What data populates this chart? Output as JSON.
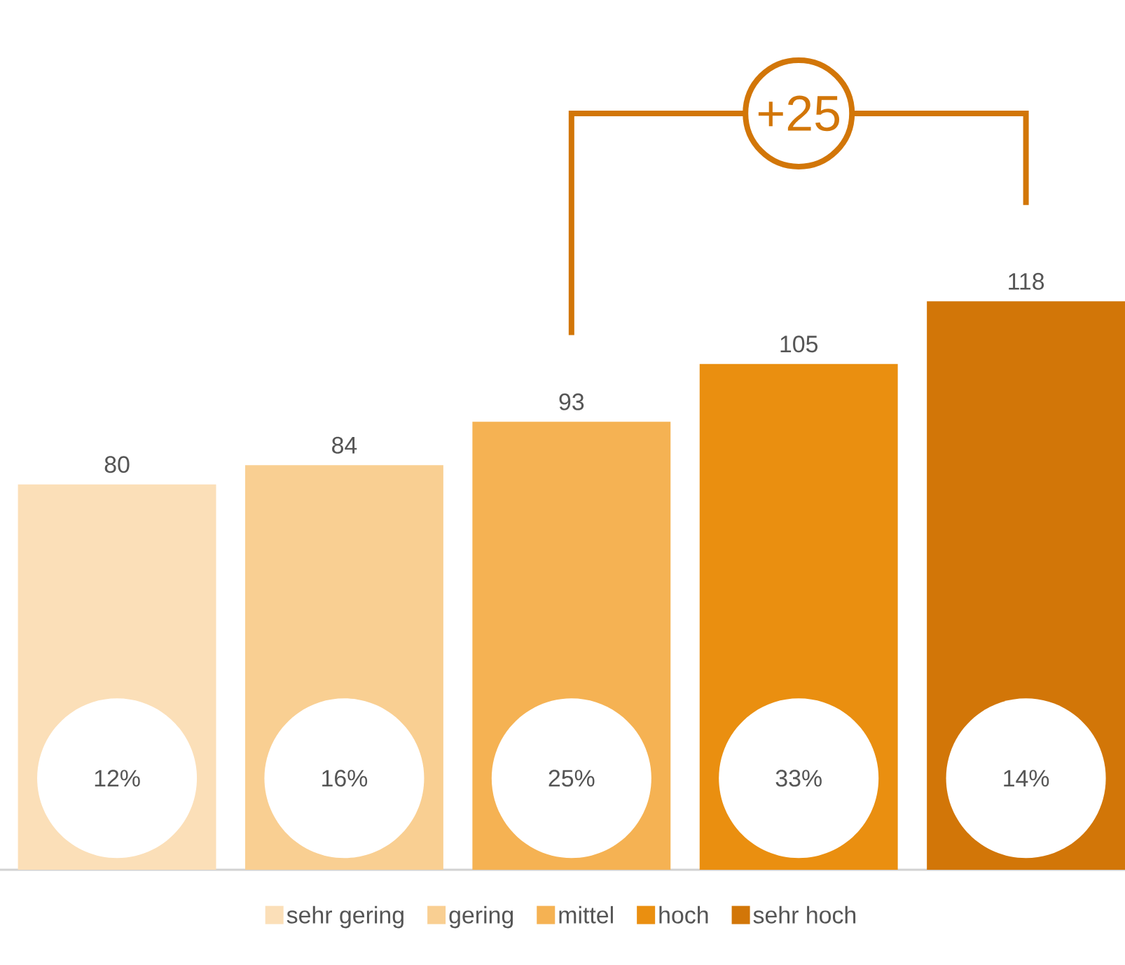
{
  "chart_data": {
    "type": "bar",
    "categories": [
      null
    ],
    "series": [
      {
        "name": "sehr gering",
        "color": "#fbdfb8",
        "values": [
          80
        ]
      },
      {
        "name": "gering",
        "color": "#f9cf92",
        "values": [
          84
        ]
      },
      {
        "name": "mittel",
        "color": "#f5b253",
        "values": [
          93
        ]
      },
      {
        "name": "hoch",
        "color": "#ea8f10",
        "values": [
          105
        ]
      },
      {
        "name": "sehr hoch",
        "color": "#d27608",
        "values": [
          118
        ]
      }
    ],
    "data_labels": true,
    "legend": "bottom",
    "annotations": [
      "12%",
      "16%",
      "25%",
      "33%",
      "14%",
      "+25"
    ]
  }
}
